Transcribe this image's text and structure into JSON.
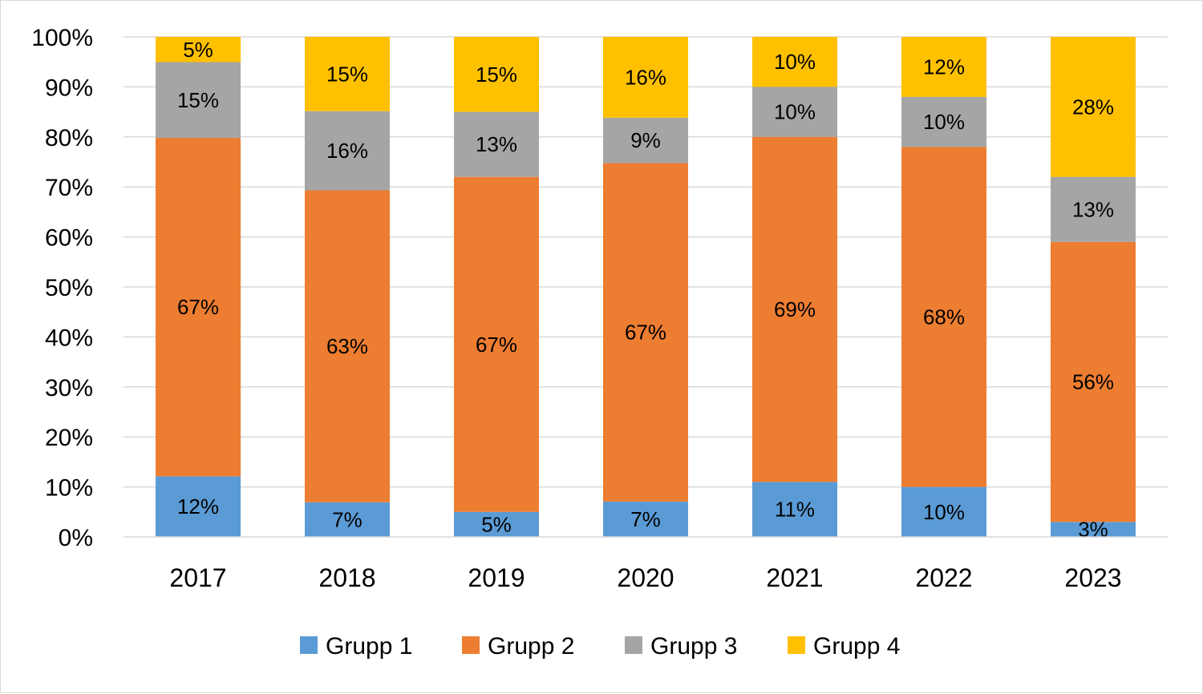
{
  "chart_data": {
    "type": "bar",
    "stacked": true,
    "normalized": true,
    "categories": [
      "2017",
      "2018",
      "2019",
      "2020",
      "2021",
      "2022",
      "2023"
    ],
    "series": [
      {
        "name": "Grupp 1",
        "color": "#5B9BD5",
        "values": [
          12,
          7,
          5,
          7,
          11,
          10,
          3
        ],
        "labels": [
          "12%",
          "7%",
          "5%",
          "7%",
          "11%",
          "10%",
          "3%"
        ]
      },
      {
        "name": "Grupp 2",
        "color": "#ED7D31",
        "values": [
          67,
          63,
          67,
          67,
          69,
          68,
          56
        ],
        "labels": [
          "67%",
          "63%",
          "67%",
          "67%",
          "69%",
          "68%",
          "56%"
        ]
      },
      {
        "name": "Grupp 3",
        "color": "#A5A5A5",
        "values": [
          15,
          16,
          13,
          9,
          10,
          10,
          13
        ],
        "labels": [
          "15%",
          "16%",
          "13%",
          "9%",
          "10%",
          "10%",
          "13%"
        ]
      },
      {
        "name": "Grupp 4",
        "color": "#FFC000",
        "values": [
          5,
          15,
          15,
          16,
          10,
          12,
          28
        ],
        "labels": [
          "5%",
          "15%",
          "15%",
          "16%",
          "10%",
          "12%",
          "28%"
        ]
      }
    ],
    "y_ticks": [
      "0%",
      "10%",
      "20%",
      "30%",
      "40%",
      "50%",
      "60%",
      "70%",
      "80%",
      "90%",
      "100%"
    ],
    "ylim": [
      0,
      100
    ],
    "grid": true,
    "legend_position": "bottom",
    "title": "",
    "xlabel": "",
    "ylabel": ""
  }
}
